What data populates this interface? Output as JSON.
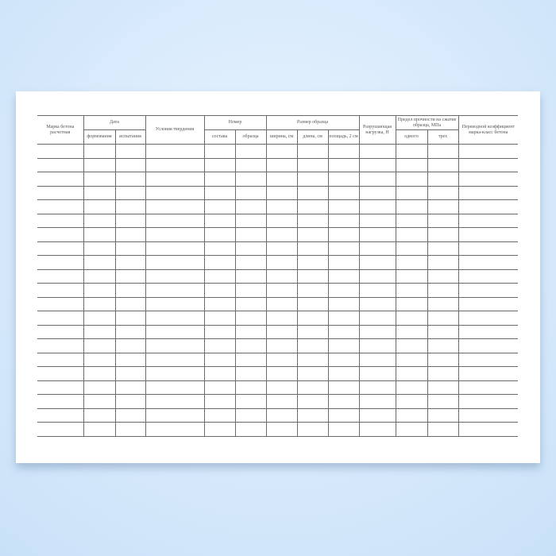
{
  "table": {
    "headers": {
      "grade": "Марка бетона расчетная",
      "date": "Дата",
      "date_forming": "формования",
      "date_testing": "испытания",
      "curing": "Условия твердения",
      "number": "Номер",
      "number_mix": "состава",
      "number_sample": "образца",
      "size": "Размер образца",
      "size_width": "ширина, см",
      "size_length": "длина, см",
      "size_area": "площадь, 2 см",
      "load": "Разрушающая нагрузка, Н",
      "strength": "Предел прочности на сжатие образца, МПа",
      "strength_one": "одного",
      "strength_three": "трех",
      "coef": "Переводной коэффициент марка-класс бетона"
    },
    "line_color": "#6a6a6a"
  }
}
